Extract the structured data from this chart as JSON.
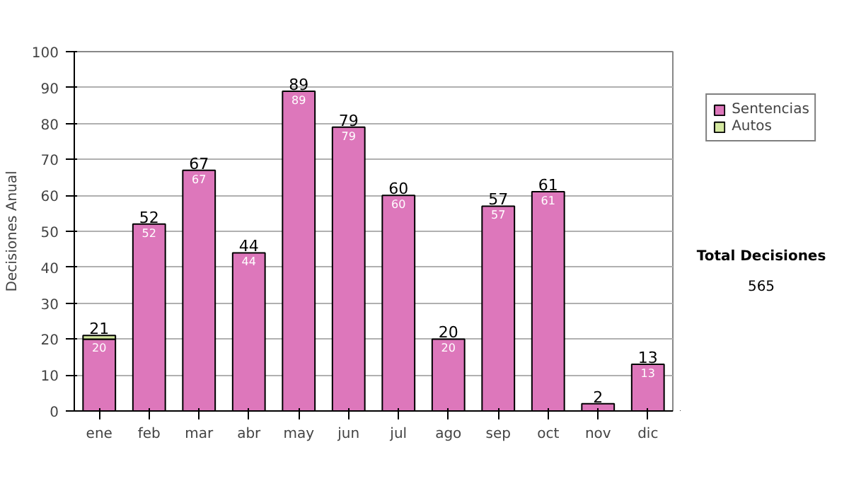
{
  "chart_data": {
    "type": "bar",
    "stacked": true,
    "ylabel": "Decisiones Anual",
    "categories": [
      "ene",
      "feb",
      "mar",
      "abr",
      "may",
      "jun",
      "jul",
      "ago",
      "sep",
      "oct",
      "nov",
      "dic"
    ],
    "series": [
      {
        "name": "Sentencias",
        "color": "#dd77bb",
        "values": [
          20,
          52,
          67,
          44,
          89,
          79,
          60,
          20,
          57,
          61,
          2,
          13
        ],
        "value_labels": [
          "20",
          "52",
          "67",
          "44",
          "89",
          "79",
          "60",
          "20",
          "57",
          "61",
          null,
          "13"
        ]
      },
      {
        "name": "Autos",
        "color": "#d4e8a0",
        "values": [
          1,
          0,
          0,
          0,
          0,
          0,
          0,
          0,
          0,
          0,
          0,
          0
        ]
      }
    ],
    "totals": [
      "21",
      "52",
      "67",
      "44",
      "89",
      "79",
      "60",
      "20",
      "57",
      "61",
      "2",
      "13"
    ],
    "ylim": [
      0,
      100
    ],
    "yticks": [
      0,
      10,
      20,
      30,
      40,
      50,
      60,
      70,
      80,
      90,
      100
    ],
    "grid": "y",
    "legend": "right",
    "annotations": [
      "Total Decisiones",
      "565"
    ]
  }
}
